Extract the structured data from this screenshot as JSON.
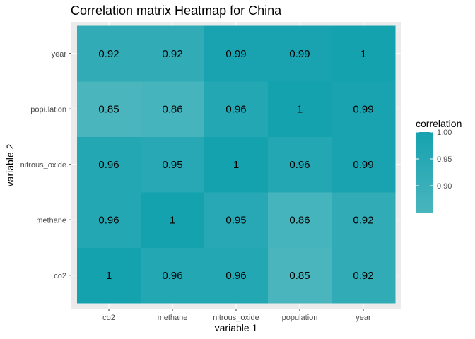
{
  "chart_data": {
    "type": "heatmap",
    "title": "Correlation matrix Heatmap for China",
    "xlabel": "variable 1",
    "ylabel": "variable 2",
    "x_categories": [
      "co2",
      "methane",
      "nitrous_oxide",
      "population",
      "year"
    ],
    "y_categories": [
      "co2",
      "methane",
      "nitrous_oxide",
      "population",
      "year"
    ],
    "values": [
      [
        1,
        0.96,
        0.96,
        0.85,
        0.92
      ],
      [
        0.96,
        1,
        0.95,
        0.86,
        0.92
      ],
      [
        0.96,
        0.95,
        1,
        0.96,
        0.99
      ],
      [
        0.85,
        0.86,
        0.96,
        1,
        0.99
      ],
      [
        0.92,
        0.92,
        0.99,
        0.99,
        1
      ]
    ],
    "value_labels": [
      [
        "1",
        "0.96",
        "0.96",
        "0.85",
        "0.92"
      ],
      [
        "0.96",
        "1",
        "0.95",
        "0.86",
        "0.92"
      ],
      [
        "0.96",
        "0.95",
        "1",
        "0.96",
        "0.99"
      ],
      [
        "0.85",
        "0.86",
        "0.96",
        "1",
        "0.99"
      ],
      [
        "0.92",
        "0.92",
        "0.99",
        "0.99",
        "1"
      ]
    ],
    "legend": {
      "title": "correlation",
      "position": "right",
      "range": [
        0.85,
        1.0
      ],
      "ticks": [
        {
          "value": 1.0,
          "label": "1.00"
        },
        {
          "value": 0.95,
          "label": "0.95"
        },
        {
          "value": 0.9,
          "label": "0.90"
        }
      ]
    },
    "colors": {
      "low": "#4ab5bd",
      "high": "#15a2af",
      "panel_background": "#ebebeb",
      "grid": "#ffffff"
    },
    "grid": true
  }
}
